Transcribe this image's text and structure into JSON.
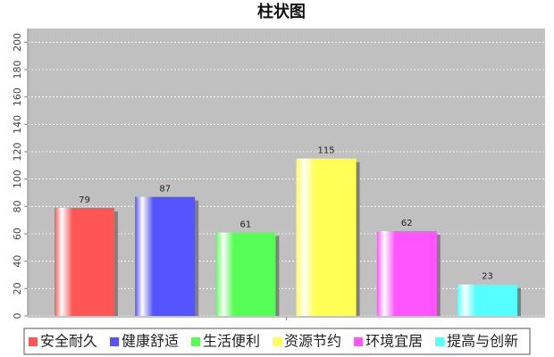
{
  "chart_data": {
    "type": "bar",
    "title": "柱状图",
    "categories": [
      null
    ],
    "series": [
      {
        "name": "安全耐久",
        "color": "#ff5555",
        "values": [
          79
        ]
      },
      {
        "name": "健康舒适",
        "color": "#5555ff",
        "values": [
          87
        ]
      },
      {
        "name": "生活便利",
        "color": "#55ff55",
        "values": [
          61
        ]
      },
      {
        "name": "资源节约",
        "color": "#ffff55",
        "values": [
          115
        ]
      },
      {
        "name": "环境宜居",
        "color": "#ff55ff",
        "values": [
          62
        ]
      },
      {
        "name": "提高与创新",
        "color": "#55ffff",
        "values": [
          23
        ]
      }
    ],
    "ylim": [
      0,
      210
    ],
    "yticks": [
      0,
      20,
      40,
      60,
      80,
      100,
      120,
      140,
      160,
      180,
      200
    ],
    "grid": true,
    "legend": "bottom"
  }
}
